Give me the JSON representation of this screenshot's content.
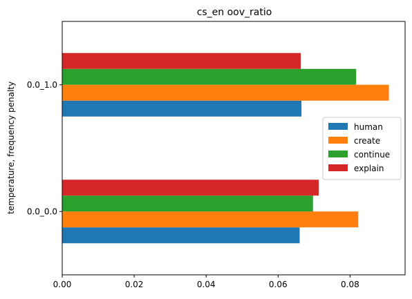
{
  "chart_data": {
    "type": "bar",
    "orientation": "horizontal",
    "title": "cs_en oov_ratio",
    "xlabel": "",
    "ylabel": "temperature, frequency penalty",
    "categories": [
      "0.0_0.0",
      "0.0_1.0"
    ],
    "series": [
      {
        "name": "human",
        "color": "#1f77b4",
        "values": [
          0.066,
          0.0665
        ]
      },
      {
        "name": "create",
        "color": "#ff7f0e",
        "values": [
          0.0823,
          0.0908
        ]
      },
      {
        "name": "continue",
        "color": "#2ca02c",
        "values": [
          0.0697,
          0.0817
        ]
      },
      {
        "name": "explain",
        "color": "#d62728",
        "values": [
          0.0713,
          0.0663
        ]
      }
    ],
    "xlim": [
      0,
      0.0953
    ],
    "xticks": [
      0.0,
      0.02,
      0.04,
      0.06,
      0.08
    ],
    "xtick_labels": [
      "0.00",
      "0.02",
      "0.04",
      "0.06",
      "0.08"
    ],
    "grid": false,
    "legend": "center-right"
  }
}
